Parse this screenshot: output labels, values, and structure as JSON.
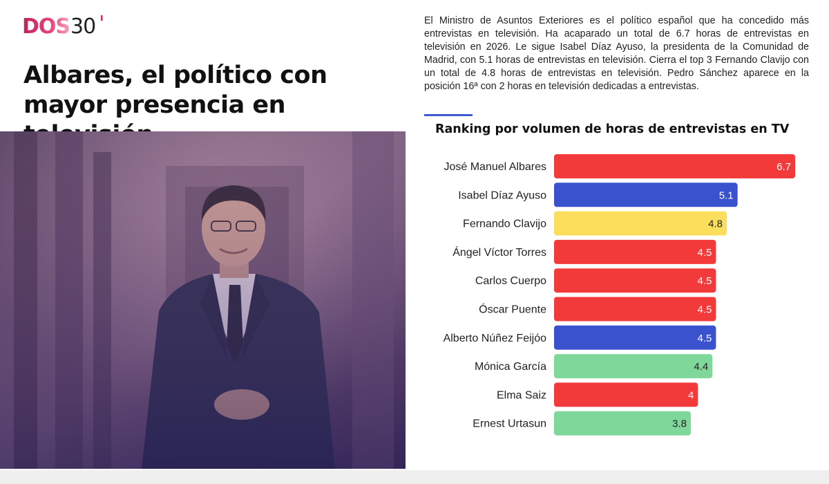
{
  "brand": {
    "logo_text": "DOS30'"
  },
  "article": {
    "headline": "Albares, el político con mayor presencia en televisión",
    "intro": "El Ministro de Asuntos Exteriores es el político español que ha concedido más entrevistas en televisión. Ha acaparado un total de 6.7 horas de entrevistas en televisión en 2026. Le sigue Isabel Díaz Ayuso, la presidenta de la Comunidad de Madrid, con 5.1 horas de entrevistas en televisión. Cierra el top 3 Fernando Clavijo con un total de 4.8 horas de entrevistas en televisión. Pedro Sánchez aparece en la posición 16ª con 2 horas en televisión dedicadas a entrevistas."
  },
  "colors": {
    "red": "#f23a3a",
    "blue": "#3b52cf",
    "yellow": "#fbdf5c",
    "green": "#7fd89a",
    "accent": "#3d5bd3"
  },
  "chart_data": {
    "type": "bar",
    "orientation": "horizontal",
    "title": "Ranking por volumen de horas de entrevistas en TV",
    "categories": [
      "José Manuel Albares",
      "Isabel Díaz Ayuso",
      "Fernando Clavijo",
      "Ángel Víctor Torres",
      "Carlos Cuerpo",
      "Óscar Puente",
      "Alberto Núñez Feijóo",
      "Mónica García",
      "Elma Saiz",
      "Ernest Urtasun"
    ],
    "values": [
      6.7,
      5.1,
      4.8,
      4.5,
      4.5,
      4.5,
      4.5,
      4.4,
      4,
      3.8
    ],
    "value_labels": [
      "6.7",
      "5.1",
      "4.8",
      "4.5",
      "4.5",
      "4.5",
      "4.5",
      "4.4",
      "4",
      "3.8"
    ],
    "bar_colors": [
      "red",
      "blue",
      "yellow",
      "red",
      "red",
      "red",
      "blue",
      "green",
      "red",
      "green"
    ],
    "label_colors": [
      "white",
      "white",
      "dark",
      "white",
      "white",
      "white",
      "white",
      "dark",
      "white",
      "dark"
    ],
    "xlim": [
      0,
      6.7
    ],
    "grid": false,
    "legend": "none"
  }
}
